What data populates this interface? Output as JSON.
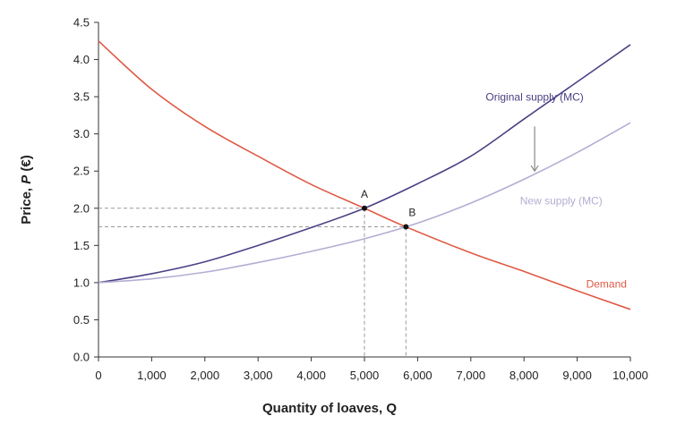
{
  "chart_data": {
    "type": "line",
    "title": "",
    "xlabel": "Quantity of loaves, Q",
    "ylabel_parts": [
      "Price, ",
      "P",
      " (€)"
    ],
    "xlim": [
      0,
      10000
    ],
    "ylim": [
      0,
      4.5
    ],
    "x_ticks": [
      0,
      1000,
      2000,
      3000,
      4000,
      5000,
      6000,
      7000,
      8000,
      9000,
      10000
    ],
    "x_tick_labels": [
      "0",
      "1,000",
      "2,000",
      "3,000",
      "4,000",
      "5,000",
      "6,000",
      "7,000",
      "8,000",
      "9,000",
      "10,000"
    ],
    "y_ticks": [
      0,
      0.5,
      1,
      1.5,
      2,
      2.5,
      3,
      3.5,
      4,
      4.5
    ],
    "y_tick_labels": [
      "0.0",
      "0.5",
      "1.0",
      "1.5",
      "2.0",
      "2.5",
      "3.0",
      "3.5",
      "4.0",
      "4.5"
    ],
    "grid": false,
    "series": [
      {
        "name": "Original supply (MC)",
        "color": "#4a4185",
        "x": [
          0,
          1000,
          2000,
          3000,
          4000,
          5000,
          6000,
          7000,
          8000,
          9000,
          10000
        ],
        "y": [
          1.0,
          1.12,
          1.28,
          1.5,
          1.74,
          2.0,
          2.33,
          2.7,
          3.2,
          3.7,
          4.2
        ]
      },
      {
        "name": "New supply (MC)",
        "color": "#b3aed3",
        "x": [
          0,
          1000,
          2000,
          3000,
          4000,
          5000,
          6000,
          7000,
          8000,
          9000,
          10000
        ],
        "y": [
          1.0,
          1.05,
          1.14,
          1.27,
          1.42,
          1.59,
          1.8,
          2.07,
          2.39,
          2.75,
          3.15
        ]
      },
      {
        "name": "Demand",
        "color": "#e05a45",
        "x": [
          0,
          1000,
          2000,
          3000,
          4000,
          5000,
          5780,
          7000,
          8000,
          9000,
          10000
        ],
        "y": [
          4.25,
          3.6,
          3.1,
          2.7,
          2.32,
          2.0,
          1.75,
          1.4,
          1.15,
          0.89,
          0.64
        ]
      }
    ],
    "points": [
      {
        "label": "A",
        "x": 5000,
        "y": 2.0
      },
      {
        "label": "B",
        "x": 5780,
        "y": 1.75
      }
    ],
    "shift_arrow": {
      "x": 8200,
      "y_from": 3.1,
      "y_to": 2.5,
      "color": "#888888"
    },
    "series_label_positions": {
      "Original supply (MC)": {
        "x": 8200,
        "y": 3.45,
        "anchor": "middle"
      },
      "New supply (MC)": {
        "x": 8700,
        "y": 2.05,
        "anchor": "middle"
      },
      "Demand": {
        "x": 9550,
        "y": 0.93,
        "anchor": "middle"
      }
    }
  }
}
